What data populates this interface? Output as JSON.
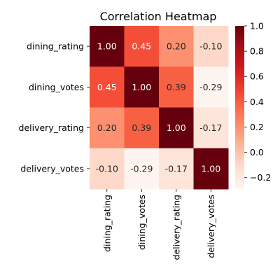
{
  "chart_data": {
    "type": "heatmap",
    "title": "Correlation Heatmap",
    "x_labels": [
      "dining_rating",
      "dining_votes",
      "delivery_rating",
      "delivery_votes"
    ],
    "y_labels": [
      "dining_rating",
      "dining_votes",
      "delivery_rating",
      "delivery_votes"
    ],
    "values": [
      [
        1.0,
        0.45,
        0.2,
        -0.1
      ],
      [
        0.45,
        1.0,
        0.39,
        -0.29
      ],
      [
        0.2,
        0.39,
        1.0,
        -0.17
      ],
      [
        -0.1,
        -0.29,
        -0.17,
        1.0
      ]
    ],
    "value_format": "2 decimals",
    "colormap": "Reds",
    "colorbar": {
      "min": -0.29,
      "max": 1.0,
      "ticks": [
        -0.2,
        0.0,
        0.2,
        0.4,
        0.6,
        0.8,
        1.0
      ],
      "tick_labels": [
        "−0.2",
        "0.0",
        "0.2",
        "0.4",
        "0.6",
        "0.8",
        "1.0"
      ]
    }
  }
}
